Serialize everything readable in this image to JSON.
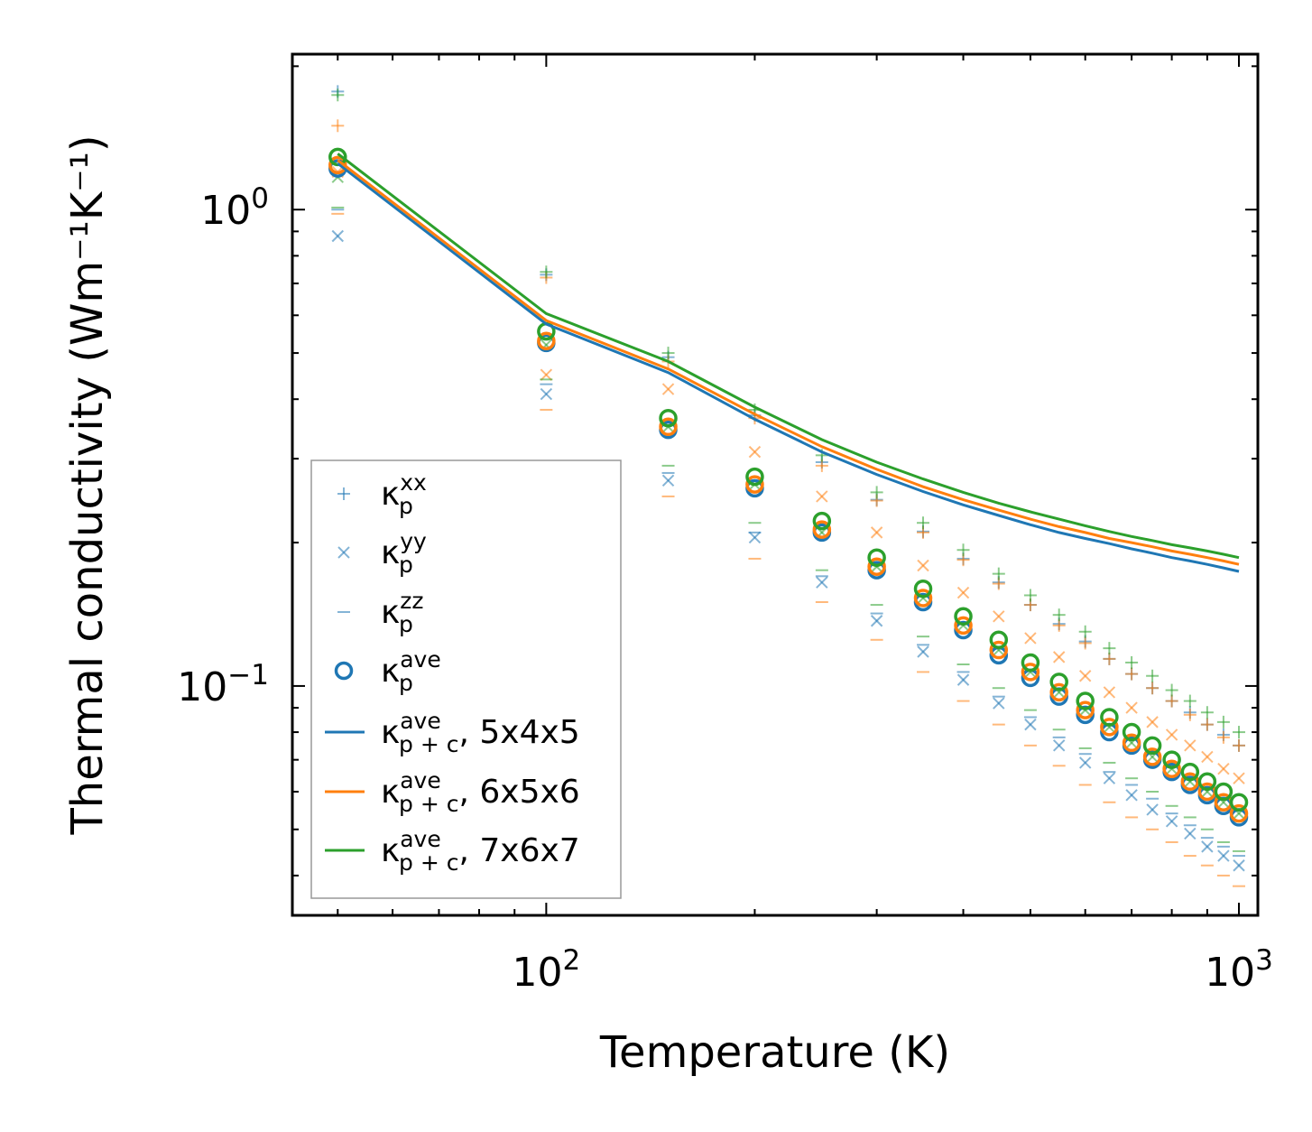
{
  "chart_data": {
    "type": "scatter",
    "xscale": "log",
    "yscale": "log",
    "xlabel": "Temperature (K)",
    "ylabel": "Thermal conductivity (Wm⁻¹K⁻¹)",
    "xlim": [
      43,
      1065
    ],
    "ylim": [
      0.033,
      2.12
    ],
    "xticks": [
      {
        "base": "10",
        "exp": "2",
        "value": 100
      },
      {
        "base": "10",
        "exp": "3",
        "value": 1000
      }
    ],
    "yticks": [
      {
        "base": "10",
        "exp": "−1",
        "value": 0.1
      },
      {
        "base": "10",
        "exp": "0",
        "value": 1
      }
    ],
    "colors": {
      "blue": "#1f77b4",
      "orange": "#ff7f0e",
      "green": "#2ca02c"
    },
    "x": [
      50,
      100,
      150,
      200,
      250,
      300,
      350,
      400,
      450,
      500,
      550,
      600,
      650,
      700,
      750,
      800,
      850,
      900,
      950,
      1000
    ],
    "series": [
      {
        "name": "5x4x5",
        "color": "#1f77b4",
        "xx": [
          1.77,
          0.73,
          0.49,
          0.37,
          0.295,
          0.246,
          0.211,
          0.185,
          0.165,
          0.148,
          0.135,
          0.124,
          0.114,
          0.106,
          0.099,
          0.093,
          0.088,
          0.083,
          0.079,
          0.075
        ],
        "yy": [
          0.88,
          0.41,
          0.27,
          0.205,
          0.165,
          0.137,
          0.118,
          0.103,
          0.092,
          0.083,
          0.075,
          0.069,
          0.064,
          0.059,
          0.055,
          0.052,
          0.049,
          0.046,
          0.044,
          0.042
        ],
        "zz": [
          1.0,
          0.43,
          0.28,
          0.21,
          0.17,
          0.142,
          0.122,
          0.107,
          0.095,
          0.086,
          0.078,
          0.072,
          0.066,
          0.062,
          0.058,
          0.054,
          0.051,
          0.048,
          0.046,
          0.044
        ],
        "ave": [
          1.22,
          0.525,
          0.345,
          0.26,
          0.21,
          0.175,
          0.15,
          0.131,
          0.116,
          0.104,
          0.095,
          0.087,
          0.08,
          0.075,
          0.07,
          0.066,
          0.062,
          0.059,
          0.056,
          0.053
        ],
        "line": [
          1.25,
          0.575,
          0.455,
          0.363,
          0.31,
          0.278,
          0.256,
          0.24,
          0.228,
          0.218,
          0.21,
          0.204,
          0.199,
          0.194,
          0.19,
          0.186,
          0.183,
          0.18,
          0.177,
          0.174
        ]
      },
      {
        "name": "6x5x6",
        "color": "#ff7f0e",
        "xx": [
          1.5,
          0.72,
          0.48,
          0.365,
          0.29,
          0.245,
          0.21,
          0.184,
          0.164,
          0.148,
          0.134,
          0.123,
          0.114,
          0.106,
          0.099,
          0.093,
          0.087,
          0.083,
          0.078,
          0.075
        ],
        "yy": [
          1.2,
          0.45,
          0.42,
          0.31,
          0.25,
          0.21,
          0.179,
          0.157,
          0.14,
          0.126,
          0.115,
          0.105,
          0.097,
          0.09,
          0.084,
          0.079,
          0.075,
          0.071,
          0.067,
          0.064
        ],
        "zz": [
          0.98,
          0.38,
          0.25,
          0.185,
          0.15,
          0.125,
          0.107,
          0.093,
          0.083,
          0.075,
          0.068,
          0.062,
          0.057,
          0.053,
          0.05,
          0.047,
          0.044,
          0.042,
          0.04,
          0.038
        ],
        "ave": [
          1.24,
          0.53,
          0.35,
          0.265,
          0.213,
          0.178,
          0.153,
          0.134,
          0.119,
          0.107,
          0.097,
          0.089,
          0.082,
          0.076,
          0.071,
          0.067,
          0.063,
          0.06,
          0.057,
          0.054
        ],
        "line": [
          1.27,
          0.585,
          0.463,
          0.372,
          0.318,
          0.285,
          0.262,
          0.246,
          0.234,
          0.224,
          0.216,
          0.21,
          0.204,
          0.2,
          0.196,
          0.192,
          0.189,
          0.186,
          0.183,
          0.18
        ]
      },
      {
        "name": "7x6x7",
        "color": "#2ca02c",
        "xx": [
          1.74,
          0.74,
          0.5,
          0.38,
          0.305,
          0.255,
          0.22,
          0.193,
          0.172,
          0.155,
          0.141,
          0.13,
          0.12,
          0.112,
          0.105,
          0.098,
          0.093,
          0.088,
          0.084,
          0.08
        ],
        "yy": [
          1.17,
          0.52,
          0.35,
          0.265,
          0.21,
          0.178,
          0.153,
          0.134,
          0.119,
          0.107,
          0.097,
          0.089,
          0.082,
          0.076,
          0.071,
          0.067,
          0.063,
          0.06,
          0.057,
          0.054
        ],
        "zz": [
          1.01,
          0.44,
          0.29,
          0.22,
          0.175,
          0.148,
          0.127,
          0.111,
          0.099,
          0.089,
          0.081,
          0.074,
          0.069,
          0.064,
          0.06,
          0.056,
          0.053,
          0.05,
          0.047,
          0.045
        ],
        "ave": [
          1.29,
          0.555,
          0.365,
          0.275,
          0.222,
          0.186,
          0.16,
          0.14,
          0.125,
          0.112,
          0.102,
          0.093,
          0.086,
          0.08,
          0.075,
          0.07,
          0.066,
          0.063,
          0.06,
          0.057
        ],
        "line": [
          1.31,
          0.605,
          0.48,
          0.385,
          0.329,
          0.295,
          0.272,
          0.255,
          0.242,
          0.232,
          0.224,
          0.217,
          0.211,
          0.206,
          0.202,
          0.198,
          0.195,
          0.192,
          0.189,
          0.186
        ]
      }
    ],
    "legend": {
      "position": "lower-left",
      "entries": [
        {
          "kappa": "κ",
          "sub": "p",
          "sup": "xx",
          "suffix": ""
        },
        {
          "kappa": "κ",
          "sub": "p",
          "sup": "yy",
          "suffix": ""
        },
        {
          "kappa": "κ",
          "sub": "p",
          "sup": "zz",
          "suffix": ""
        },
        {
          "kappa": "κ",
          "sub": "p",
          "sup": "ave",
          "suffix": ""
        },
        {
          "kappa": "κ",
          "sub": "p + c",
          "sup": "ave",
          "suffix": ", 5x4x5"
        },
        {
          "kappa": "κ",
          "sub": "p + c",
          "sup": "ave",
          "suffix": ", 6x5x6"
        },
        {
          "kappa": "κ",
          "sub": "p + c",
          "sup": "ave",
          "suffix": ", 7x6x7"
        }
      ]
    }
  }
}
